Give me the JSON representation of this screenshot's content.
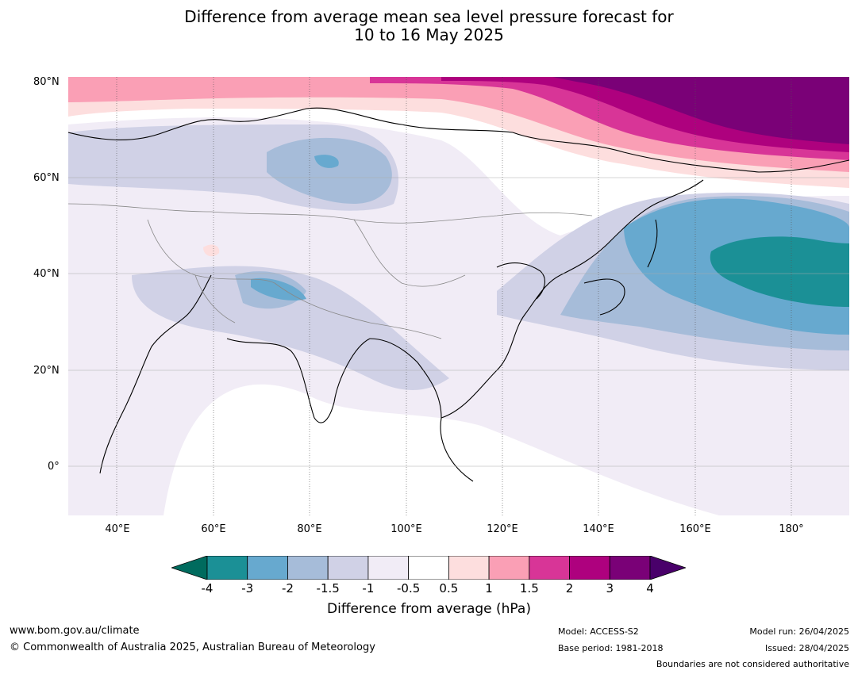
{
  "title_line1": "Difference from average mean sea level pressure forecast for",
  "title_line2": "10 to 16 May 2025",
  "lat_labels": [
    "80°N",
    "60°N",
    "40°N",
    "20°N",
    "0°"
  ],
  "lon_labels": [
    "40°E",
    "60°E",
    "80°E",
    "100°E",
    "120°E",
    "140°E",
    "160°E",
    "180°"
  ],
  "colorbar": {
    "label": "Difference from average (hPa)",
    "ticks": [
      "-4",
      "-3",
      "-2",
      "-1.5",
      "-1",
      "-0.5",
      "0.5",
      "1",
      "1.5",
      "2",
      "3",
      "4"
    ],
    "colors": [
      "#006b5e",
      "#1b9096",
      "#67a9cf",
      "#a6bcd9",
      "#d0d1e6",
      "#f1ecf6",
      "#ffffff",
      "#fddede",
      "#fa9fb5",
      "#d83597",
      "#ae017e",
      "#7a0177",
      "#49006a"
    ]
  },
  "footer": {
    "website": "www.bom.gov.au/climate",
    "copyright": "© Commonwealth of Australia 2025, Australian Bureau of Meteorology",
    "model": "Model: ACCESS-S2",
    "base_period": "Base period: 1981-2018",
    "model_run": "Model run: 26/04/2025",
    "issued": "Issued: 28/04/2025",
    "disclaimer": "Boundaries are not considered authoritative"
  }
}
